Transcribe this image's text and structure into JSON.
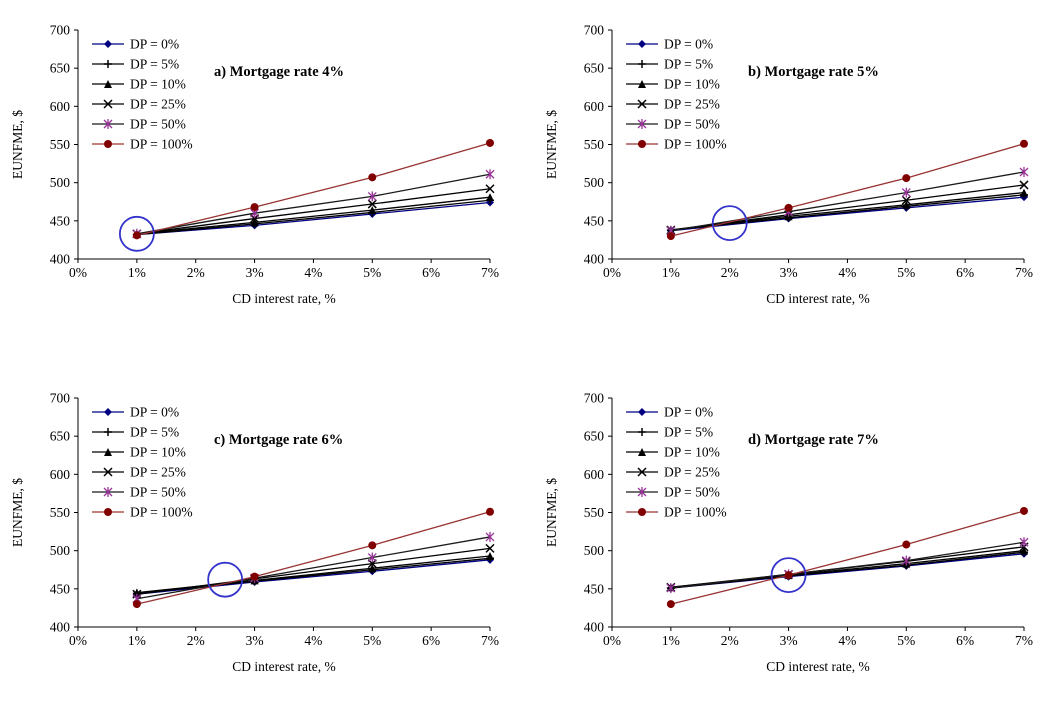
{
  "figure": {
    "background": "#ffffff",
    "axis_color": "#000000",
    "annotation_color": "#3333cc"
  },
  "chart_data": [
    {
      "id": "a",
      "type": "line",
      "title": "a) Mortgage rate 4%",
      "xlabel": "CD interest rate, %",
      "ylabel": "EUNFME, $",
      "xlim": [
        0,
        7
      ],
      "ylim": [
        400,
        700
      ],
      "x_tick_values": [
        0,
        1,
        2,
        3,
        4,
        5,
        6,
        7
      ],
      "x_tick_labels": [
        "0%",
        "1%",
        "2%",
        "3%",
        "4%",
        "5%",
        "6%",
        "7%"
      ],
      "y_ticks": [
        400,
        450,
        500,
        550,
        600,
        650,
        700
      ],
      "legend_position": "top-left-inside",
      "grid": false,
      "x": [
        1,
        3,
        5,
        7
      ],
      "series": [
        {
          "name": "DP = 0%",
          "marker": "diamond",
          "color": "#000080",
          "line_color": "#000080",
          "values": [
            432,
            444,
            459,
            474
          ]
        },
        {
          "name": "DP = 5%",
          "marker": "plus",
          "color": "#000000",
          "line_color": "#000000",
          "values": [
            432,
            446,
            461,
            477
          ]
        },
        {
          "name": "DP = 10%",
          "marker": "triangle",
          "color": "#000000",
          "line_color": "#000000",
          "values": [
            433,
            448,
            464,
            481
          ]
        },
        {
          "name": "DP = 25%",
          "marker": "x",
          "color": "#000000",
          "line_color": "#000000",
          "values": [
            433,
            453,
            472,
            492
          ]
        },
        {
          "name": "DP = 50%",
          "marker": "star",
          "color": "#993399",
          "line_color": "#1a1a1a",
          "values": [
            433,
            460,
            482,
            511
          ]
        },
        {
          "name": "DP = 100%",
          "marker": "circle",
          "color": "#800000",
          "line_color": "#993333",
          "values": [
            431,
            468,
            507,
            552
          ]
        }
      ],
      "highlight_circle": {
        "x": 1,
        "y": 433
      }
    },
    {
      "id": "b",
      "type": "line",
      "title": "b) Mortgage rate 5%",
      "xlabel": "CD interest rate, %",
      "ylabel": "EUNFME, $",
      "xlim": [
        0,
        7
      ],
      "ylim": [
        400,
        700
      ],
      "x_tick_values": [
        0,
        1,
        2,
        3,
        4,
        5,
        6,
        7
      ],
      "x_tick_labels": [
        "0%",
        "1%",
        "2%",
        "3%",
        "4%",
        "5%",
        "6%",
        "7%"
      ],
      "y_ticks": [
        400,
        450,
        500,
        550,
        600,
        650,
        700
      ],
      "legend_position": "top-left-inside",
      "grid": false,
      "x": [
        1,
        3,
        5,
        7
      ],
      "series": [
        {
          "name": "DP = 0%",
          "marker": "diamond",
          "color": "#000080",
          "line_color": "#000080",
          "values": [
            437,
            453,
            467,
            481
          ]
        },
        {
          "name": "DP = 5%",
          "marker": "plus",
          "color": "#000000",
          "line_color": "#000000",
          "values": [
            438,
            454,
            469,
            484
          ]
        },
        {
          "name": "DP = 10%",
          "marker": "triangle",
          "color": "#000000",
          "line_color": "#000000",
          "values": [
            438,
            456,
            471,
            487
          ]
        },
        {
          "name": "DP = 25%",
          "marker": "x",
          "color": "#000000",
          "line_color": "#000000",
          "values": [
            438,
            458,
            477,
            497
          ]
        },
        {
          "name": "DP = 50%",
          "marker": "star",
          "color": "#993399",
          "line_color": "#1a1a1a",
          "values": [
            437,
            462,
            487,
            514
          ]
        },
        {
          "name": "DP = 100%",
          "marker": "circle",
          "color": "#800000",
          "line_color": "#993333",
          "values": [
            430,
            467,
            506,
            551
          ]
        }
      ],
      "highlight_circle": {
        "x": 2,
        "y": 447
      }
    },
    {
      "id": "c",
      "type": "line",
      "title": "c) Mortgage rate 6%",
      "xlabel": "CD interest rate, %",
      "ylabel": "EUNFME, $",
      "xlim": [
        0,
        7
      ],
      "ylim": [
        400,
        700
      ],
      "x_tick_values": [
        0,
        1,
        2,
        3,
        4,
        5,
        6,
        7
      ],
      "x_tick_labels": [
        "0%",
        "1%",
        "2%",
        "3%",
        "4%",
        "5%",
        "6%",
        "7%"
      ],
      "y_ticks": [
        400,
        450,
        500,
        550,
        600,
        650,
        700
      ],
      "legend_position": "top-left-inside",
      "grid": false,
      "x": [
        1,
        3,
        5,
        7
      ],
      "series": [
        {
          "name": "DP = 0%",
          "marker": "diamond",
          "color": "#000080",
          "line_color": "#000080",
          "values": [
            443,
            459,
            473,
            488
          ]
        },
        {
          "name": "DP = 5%",
          "marker": "plus",
          "color": "#000000",
          "line_color": "#000000",
          "values": [
            444,
            460,
            475,
            490
          ]
        },
        {
          "name": "DP = 10%",
          "marker": "triangle",
          "color": "#000000",
          "line_color": "#000000",
          "values": [
            445,
            461,
            477,
            493
          ]
        },
        {
          "name": "DP = 25%",
          "marker": "x",
          "color": "#000000",
          "line_color": "#000000",
          "values": [
            443,
            463,
            483,
            503
          ]
        },
        {
          "name": "DP = 50%",
          "marker": "star",
          "color": "#993399",
          "line_color": "#1a1a1a",
          "values": [
            437,
            464,
            491,
            518
          ]
        },
        {
          "name": "DP = 100%",
          "marker": "circle",
          "color": "#800000",
          "line_color": "#993333",
          "values": [
            430,
            466,
            507,
            551
          ]
        }
      ],
      "highlight_circle": {
        "x": 2.5,
        "y": 462
      }
    },
    {
      "id": "d",
      "type": "line",
      "title": "d) Mortgage rate 7%",
      "xlabel": "CD interest rate, %",
      "ylabel": "EUNFME, $",
      "xlim": [
        0,
        7
      ],
      "ylim": [
        400,
        700
      ],
      "x_tick_values": [
        0,
        1,
        2,
        3,
        4,
        5,
        6,
        7
      ],
      "x_tick_labels": [
        "0%",
        "1%",
        "2%",
        "3%",
        "4%",
        "5%",
        "6%",
        "7%"
      ],
      "y_ticks": [
        400,
        450,
        500,
        550,
        600,
        650,
        700
      ],
      "legend_position": "top-left-inside",
      "grid": false,
      "x": [
        1,
        3,
        5,
        7
      ],
      "series": [
        {
          "name": "DP = 0%",
          "marker": "diamond",
          "color": "#000080",
          "line_color": "#000080",
          "values": [
            451,
            466,
            480,
            496
          ]
        },
        {
          "name": "DP = 5%",
          "marker": "plus",
          "color": "#000000",
          "line_color": "#000000",
          "values": [
            451,
            467,
            481,
            498
          ]
        },
        {
          "name": "DP = 10%",
          "marker": "triangle",
          "color": "#000000",
          "line_color": "#000000",
          "values": [
            452,
            468,
            483,
            500
          ]
        },
        {
          "name": "DP = 25%",
          "marker": "x",
          "color": "#000000",
          "line_color": "#000000",
          "values": [
            452,
            469,
            486,
            505
          ]
        },
        {
          "name": "DP = 50%",
          "marker": "star",
          "color": "#993399",
          "line_color": "#1a1a1a",
          "values": [
            451,
            469,
            487,
            511
          ]
        },
        {
          "name": "DP = 100%",
          "marker": "circle",
          "color": "#800000",
          "line_color": "#993333",
          "values": [
            430,
            468,
            508,
            552
          ]
        }
      ],
      "highlight_circle": {
        "x": 3,
        "y": 468
      }
    }
  ]
}
